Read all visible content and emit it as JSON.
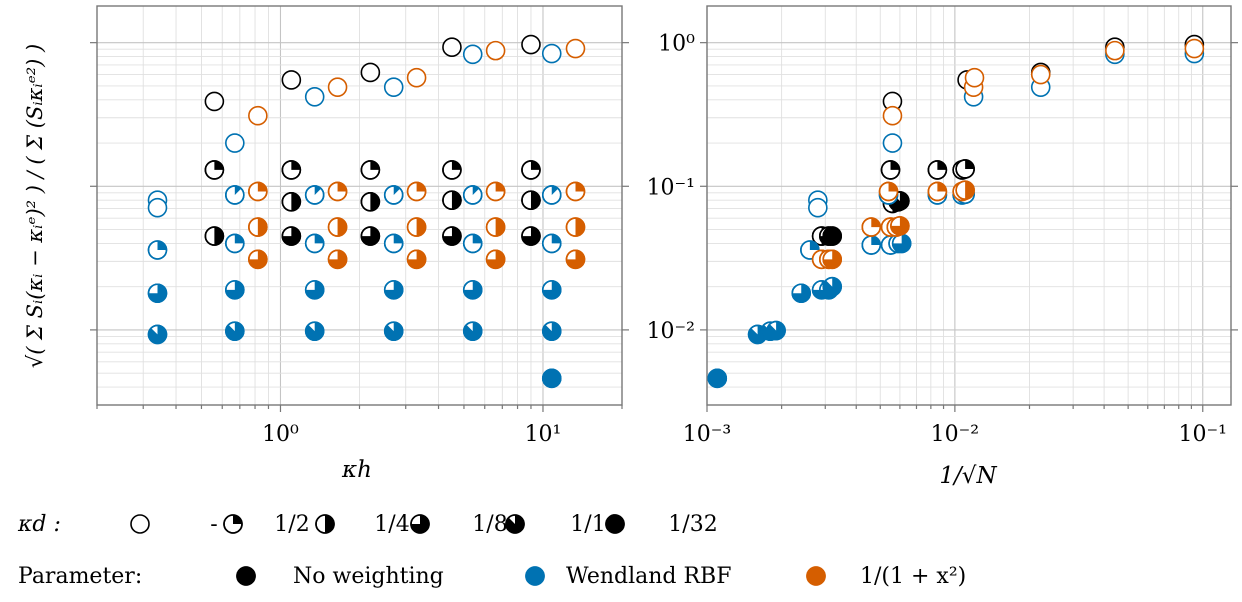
{
  "chart_data": [
    {
      "type": "scatter",
      "panel": "left",
      "xlabel": "κh",
      "ylabel": "√( Σ Sᵢ(κᵢ − κᵢᵉ)² ) / ( Σ (Sᵢκᵢᵉ²) )",
      "xscale": "log",
      "yscale": "log",
      "xlim": [
        0.2,
        20
      ],
      "ylim": [
        0.003,
        1.8
      ],
      "xticks": [
        {
          "value": 1,
          "label": "10⁰"
        },
        {
          "value": 10,
          "label": "10¹"
        }
      ],
      "yticks": [
        0.01,
        0.1,
        1
      ],
      "ytick_labels_shown": false,
      "grid": true,
      "series": [
        {
          "name": "No weighting",
          "color": "#000000",
          "points": [
            {
              "x": 0.56,
              "y": 0.39,
              "fill": 0
            },
            {
              "x": 0.56,
              "y": 0.13,
              "fill": 0.25
            },
            {
              "x": 0.56,
              "y": 0.045,
              "fill": 0.5
            },
            {
              "x": 1.1,
              "y": 0.55,
              "fill": 0
            },
            {
              "x": 1.1,
              "y": 0.13,
              "fill": 0.25
            },
            {
              "x": 1.1,
              "y": 0.078,
              "fill": 0.5
            },
            {
              "x": 1.1,
              "y": 0.045,
              "fill": 0.75
            },
            {
              "x": 2.2,
              "y": 0.62,
              "fill": 0
            },
            {
              "x": 2.2,
              "y": 0.13,
              "fill": 0.25
            },
            {
              "x": 2.2,
              "y": 0.078,
              "fill": 0.5
            },
            {
              "x": 2.2,
              "y": 0.045,
              "fill": 0.75
            },
            {
              "x": 4.5,
              "y": 0.93,
              "fill": 0
            },
            {
              "x": 4.5,
              "y": 0.13,
              "fill": 0.25
            },
            {
              "x": 4.5,
              "y": 0.08,
              "fill": 0.5
            },
            {
              "x": 4.5,
              "y": 0.045,
              "fill": 0.75
            },
            {
              "x": 9.0,
              "y": 0.97,
              "fill": 0
            },
            {
              "x": 9.0,
              "y": 0.13,
              "fill": 0.25
            },
            {
              "x": 9.0,
              "y": 0.08,
              "fill": 0.5
            },
            {
              "x": 9.0,
              "y": 0.045,
              "fill": 0.75
            }
          ]
        },
        {
          "name": "Wendland RBF",
          "color": "#0072b2",
          "points": [
            {
              "x": 0.34,
              "y": 0.08,
              "fill": 0
            },
            {
              "x": 0.34,
              "y": 0.071,
              "fill": 0
            },
            {
              "x": 0.34,
              "y": 0.036,
              "fill": 0.25
            },
            {
              "x": 0.34,
              "y": 0.018,
              "fill": 0.75
            },
            {
              "x": 0.34,
              "y": 0.0093,
              "fill": 0.875
            },
            {
              "x": 0.67,
              "y": 0.2,
              "fill": 0
            },
            {
              "x": 0.67,
              "y": 0.087,
              "fill": 0.125
            },
            {
              "x": 0.67,
              "y": 0.04,
              "fill": 0.25
            },
            {
              "x": 0.67,
              "y": 0.019,
              "fill": 0.75
            },
            {
              "x": 0.67,
              "y": 0.0098,
              "fill": 0.875
            },
            {
              "x": 1.35,
              "y": 0.42,
              "fill": 0
            },
            {
              "x": 1.35,
              "y": 0.087,
              "fill": 0.125
            },
            {
              "x": 1.35,
              "y": 0.04,
              "fill": 0.25
            },
            {
              "x": 1.35,
              "y": 0.019,
              "fill": 0.75
            },
            {
              "x": 1.35,
              "y": 0.0098,
              "fill": 0.875
            },
            {
              "x": 2.7,
              "y": 0.49,
              "fill": 0
            },
            {
              "x": 2.7,
              "y": 0.087,
              "fill": 0.125
            },
            {
              "x": 2.7,
              "y": 0.04,
              "fill": 0.25
            },
            {
              "x": 2.7,
              "y": 0.019,
              "fill": 0.75
            },
            {
              "x": 2.7,
              "y": 0.0098,
              "fill": 0.875
            },
            {
              "x": 5.4,
              "y": 0.83,
              "fill": 0
            },
            {
              "x": 5.4,
              "y": 0.087,
              "fill": 0.125
            },
            {
              "x": 5.4,
              "y": 0.04,
              "fill": 0.25
            },
            {
              "x": 5.4,
              "y": 0.019,
              "fill": 0.75
            },
            {
              "x": 5.4,
              "y": 0.0098,
              "fill": 0.875
            },
            {
              "x": 10.8,
              "y": 0.84,
              "fill": 0
            },
            {
              "x": 10.8,
              "y": 0.087,
              "fill": 0.125
            },
            {
              "x": 10.8,
              "y": 0.04,
              "fill": 0.25
            },
            {
              "x": 10.8,
              "y": 0.019,
              "fill": 0.75
            },
            {
              "x": 10.8,
              "y": 0.0098,
              "fill": 0.875
            },
            {
              "x": 10.8,
              "y": 0.0046,
              "fill": 1
            }
          ]
        },
        {
          "name": "1/(1 + x²)",
          "color": "#d55e00",
          "points": [
            {
              "x": 0.82,
              "y": 0.31,
              "fill": 0
            },
            {
              "x": 0.82,
              "y": 0.092,
              "fill": 0.25
            },
            {
              "x": 0.82,
              "y": 0.052,
              "fill": 0.5
            },
            {
              "x": 0.82,
              "y": 0.031,
              "fill": 0.75
            },
            {
              "x": 1.65,
              "y": 0.49,
              "fill": 0
            },
            {
              "x": 1.65,
              "y": 0.092,
              "fill": 0.25
            },
            {
              "x": 1.65,
              "y": 0.052,
              "fill": 0.5
            },
            {
              "x": 1.65,
              "y": 0.031,
              "fill": 0.75
            },
            {
              "x": 3.3,
              "y": 0.57,
              "fill": 0
            },
            {
              "x": 3.3,
              "y": 0.092,
              "fill": 0.25
            },
            {
              "x": 3.3,
              "y": 0.052,
              "fill": 0.5
            },
            {
              "x": 3.3,
              "y": 0.031,
              "fill": 0.75
            },
            {
              "x": 6.6,
              "y": 0.88,
              "fill": 0
            },
            {
              "x": 6.6,
              "y": 0.092,
              "fill": 0.25
            },
            {
              "x": 6.6,
              "y": 0.052,
              "fill": 0.5
            },
            {
              "x": 6.6,
              "y": 0.031,
              "fill": 0.75
            },
            {
              "x": 13.3,
              "y": 0.91,
              "fill": 0
            },
            {
              "x": 13.3,
              "y": 0.092,
              "fill": 0.25
            },
            {
              "x": 13.3,
              "y": 0.052,
              "fill": 0.5
            },
            {
              "x": 13.3,
              "y": 0.031,
              "fill": 0.75
            }
          ]
        }
      ]
    },
    {
      "type": "scatter",
      "panel": "right",
      "xlabel": "1/√N",
      "xscale": "log",
      "yscale": "log",
      "xlim": [
        0.001,
        0.13
      ],
      "ylim": [
        0.003,
        1.8
      ],
      "xticks": [
        {
          "value": 0.001,
          "label": "10⁻³"
        },
        {
          "value": 0.01,
          "label": "10⁻²"
        },
        {
          "value": 0.1,
          "label": "10⁻¹"
        }
      ],
      "yticks": [
        {
          "value": 0.01,
          "label": "10⁻²"
        },
        {
          "value": 0.1,
          "label": "10⁻¹"
        },
        {
          "value": 1,
          "label": "10⁰"
        }
      ],
      "grid": true,
      "series": [
        {
          "name": "No weighting",
          "color": "#000000",
          "points": [
            {
              "x": 0.0056,
              "y": 0.39,
              "fill": 0
            },
            {
              "x": 0.0112,
              "y": 0.55,
              "fill": 0
            },
            {
              "x": 0.0222,
              "y": 0.62,
              "fill": 0
            },
            {
              "x": 0.0442,
              "y": 0.93,
              "fill": 0
            },
            {
              "x": 0.0925,
              "y": 0.97,
              "fill": 0
            },
            {
              "x": 0.0055,
              "y": 0.13,
              "fill": 0.25
            },
            {
              "x": 0.0085,
              "y": 0.13,
              "fill": 0.25
            },
            {
              "x": 0.0107,
              "y": 0.13,
              "fill": 0.25
            },
            {
              "x": 0.011,
              "y": 0.132,
              "fill": 0.25
            },
            {
              "x": 0.0056,
              "y": 0.076,
              "fill": 0.5
            },
            {
              "x": 0.0059,
              "y": 0.078,
              "fill": 0.75
            },
            {
              "x": 0.006,
              "y": 0.079,
              "fill": 0.875
            },
            {
              "x": 0.0029,
              "y": 0.045,
              "fill": 0.5
            },
            {
              "x": 0.0031,
              "y": 0.045,
              "fill": 0.75
            },
            {
              "x": 0.0032,
              "y": 0.045,
              "fill": 1
            }
          ]
        },
        {
          "name": "Wendland RBF",
          "color": "#0072b2",
          "points": [
            {
              "x": 0.0011,
              "y": 0.0046,
              "fill": 1
            },
            {
              "x": 0.0016,
              "y": 0.0093,
              "fill": 0.875
            },
            {
              "x": 0.0018,
              "y": 0.0098,
              "fill": 0.875
            },
            {
              "x": 0.0019,
              "y": 0.0099,
              "fill": 0.875
            },
            {
              "x": 0.0024,
              "y": 0.018,
              "fill": 0.75
            },
            {
              "x": 0.0029,
              "y": 0.019,
              "fill": 0.75
            },
            {
              "x": 0.0031,
              "y": 0.019,
              "fill": 0.75
            },
            {
              "x": 0.0032,
              "y": 0.02,
              "fill": 0.875
            },
            {
              "x": 0.0026,
              "y": 0.036,
              "fill": 0.25
            },
            {
              "x": 0.0028,
              "y": 0.08,
              "fill": 0
            },
            {
              "x": 0.0028,
              "y": 0.071,
              "fill": 0
            },
            {
              "x": 0.0056,
              "y": 0.2,
              "fill": 0
            },
            {
              "x": 0.0119,
              "y": 0.42,
              "fill": 0
            },
            {
              "x": 0.0222,
              "y": 0.49,
              "fill": 0
            },
            {
              "x": 0.0442,
              "y": 0.83,
              "fill": 0
            },
            {
              "x": 0.0925,
              "y": 0.84,
              "fill": 0
            },
            {
              "x": 0.0054,
              "y": 0.087,
              "fill": 0.125
            },
            {
              "x": 0.0085,
              "y": 0.087,
              "fill": 0.125
            },
            {
              "x": 0.0107,
              "y": 0.087,
              "fill": 0.125
            },
            {
              "x": 0.011,
              "y": 0.088,
              "fill": 0.125
            },
            {
              "x": 0.0046,
              "y": 0.039,
              "fill": 0.25
            },
            {
              "x": 0.0055,
              "y": 0.039,
              "fill": 0.25
            },
            {
              "x": 0.0059,
              "y": 0.04,
              "fill": 0.5
            },
            {
              "x": 0.0061,
              "y": 0.04,
              "fill": 0.75
            }
          ]
        },
        {
          "name": "1/(1 + x²)",
          "color": "#d55e00",
          "points": [
            {
              "x": 0.0056,
              "y": 0.31,
              "fill": 0
            },
            {
              "x": 0.0119,
              "y": 0.49,
              "fill": 0
            },
            {
              "x": 0.012,
              "y": 0.57,
              "fill": 0
            },
            {
              "x": 0.0222,
              "y": 0.6,
              "fill": 0
            },
            {
              "x": 0.0442,
              "y": 0.88,
              "fill": 0
            },
            {
              "x": 0.0925,
              "y": 0.91,
              "fill": 0
            },
            {
              "x": 0.0054,
              "y": 0.092,
              "fill": 0.25
            },
            {
              "x": 0.0085,
              "y": 0.092,
              "fill": 0.25
            },
            {
              "x": 0.0107,
              "y": 0.092,
              "fill": 0.25
            },
            {
              "x": 0.011,
              "y": 0.094,
              "fill": 0.5
            },
            {
              "x": 0.0046,
              "y": 0.052,
              "fill": 0.25
            },
            {
              "x": 0.0055,
              "y": 0.052,
              "fill": 0.25
            },
            {
              "x": 0.0058,
              "y": 0.052,
              "fill": 0.5
            },
            {
              "x": 0.006,
              "y": 0.053,
              "fill": 0.75
            },
            {
              "x": 0.0029,
              "y": 0.031,
              "fill": 0.25
            },
            {
              "x": 0.0031,
              "y": 0.031,
              "fill": 0.5
            },
            {
              "x": 0.0032,
              "y": 0.031,
              "fill": 0.75
            }
          ]
        }
      ]
    }
  ],
  "legend_kd": {
    "prefix": "κd :",
    "items": [
      {
        "label": "-",
        "fill": 0
      },
      {
        "label": "1/2",
        "fill": 0.25
      },
      {
        "label": "1/4",
        "fill": 0.5
      },
      {
        "label": "1/8",
        "fill": 0.75
      },
      {
        "label": "1/16",
        "fill": 0.875
      },
      {
        "label": "1/32",
        "fill": 1
      }
    ]
  },
  "legend_param": {
    "prefix": "Parameter:",
    "items": [
      {
        "label": "No weighting",
        "color": "#000000"
      },
      {
        "label": "Wendland RBF",
        "color": "#0072b2"
      },
      {
        "label": "1/(1 + x²)",
        "color": "#d55e00"
      }
    ]
  }
}
